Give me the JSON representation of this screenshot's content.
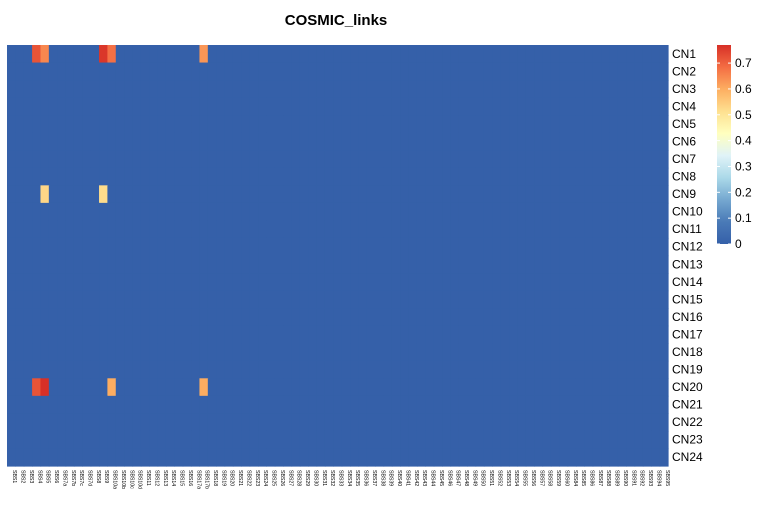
{
  "chart_data": {
    "type": "heatmap",
    "title": "COSMIC_links",
    "rows": [
      "CN1",
      "CN2",
      "CN3",
      "CN4",
      "CN5",
      "CN6",
      "CN7",
      "CN8",
      "CN9",
      "CN10",
      "CN11",
      "CN12",
      "CN13",
      "CN14",
      "CN15",
      "CN16",
      "CN17",
      "CN18",
      "CN19",
      "CN20",
      "CN21",
      "CN22",
      "CN23",
      "CN24"
    ],
    "columns": [
      "SBS1",
      "SBS2",
      "SBS3",
      "SBS4",
      "SBS5",
      "SBS6",
      "SBS7a",
      "SBS7b",
      "SBS7c",
      "SBS7d",
      "SBS8",
      "SBS9",
      "SBS10a",
      "SBS10b",
      "SBS10c",
      "SBS10d",
      "SBS11",
      "SBS12",
      "SBS13",
      "SBS14",
      "SBS15",
      "SBS16",
      "SBS17a",
      "SBS17b",
      "SBS18",
      "SBS19",
      "SBS20",
      "SBS21",
      "SBS22",
      "SBS23",
      "SBS24",
      "SBS25",
      "SBS26",
      "SBS27",
      "SBS28",
      "SBS29",
      "SBS30",
      "SBS31",
      "SBS32",
      "SBS33",
      "SBS34",
      "SBS35",
      "SBS36",
      "SBS37",
      "SBS38",
      "SBS39",
      "SBS40",
      "SBS41",
      "SBS42",
      "SBS43",
      "SBS44",
      "SBS45",
      "SBS46",
      "SBS47",
      "SBS48",
      "SBS49",
      "SBS50",
      "SBS51",
      "SBS52",
      "SBS53",
      "SBS54",
      "SBS55",
      "SBS56",
      "SBS57",
      "SBS58",
      "SBS59",
      "SBS60",
      "SBS84",
      "SBS85",
      "SBS86",
      "SBS87",
      "SBS88",
      "SBS89",
      "SBS90",
      "SBS91",
      "SBS92",
      "SBS93",
      "SBS94",
      "SBS95"
    ],
    "default_value": 0,
    "nonzero_cells": [
      {
        "row": "CN1",
        "col": "SBS4",
        "value": 0.72
      },
      {
        "row": "CN1",
        "col": "SBS5",
        "value": 0.65
      },
      {
        "row": "CN1",
        "col": "SBS9",
        "value": 0.76
      },
      {
        "row": "CN1",
        "col": "SBS10a",
        "value": 0.68
      },
      {
        "row": "CN1",
        "col": "SBS17b",
        "value": 0.63
      },
      {
        "row": "CN9",
        "col": "SBS5",
        "value": 0.53
      },
      {
        "row": "CN9",
        "col": "SBS9",
        "value": 0.52
      },
      {
        "row": "CN20",
        "col": "SBS4",
        "value": 0.72
      },
      {
        "row": "CN20",
        "col": "SBS5",
        "value": 0.77
      },
      {
        "row": "CN20",
        "col": "SBS10a",
        "value": 0.6
      },
      {
        "row": "CN20",
        "col": "SBS17b",
        "value": 0.6
      }
    ],
    "color_scale": {
      "min": 0,
      "max": 0.77,
      "stops": [
        "#3560a9",
        "#4a7ab7",
        "#75a8d0",
        "#abd9e9",
        "#e0f3f8",
        "#ffffbf",
        "#fee090",
        "#fdae61",
        "#f46d43",
        "#d73027"
      ]
    },
    "legend_ticks": [
      0,
      0.1,
      0.2,
      0.3,
      0.4,
      0.5,
      0.6,
      0.7
    ],
    "legend_tick_labels": [
      "0",
      "0.1",
      "0.2",
      "0.3",
      "0.4",
      "0.5",
      "0.6",
      "0.7"
    ],
    "legend_position": "right"
  }
}
